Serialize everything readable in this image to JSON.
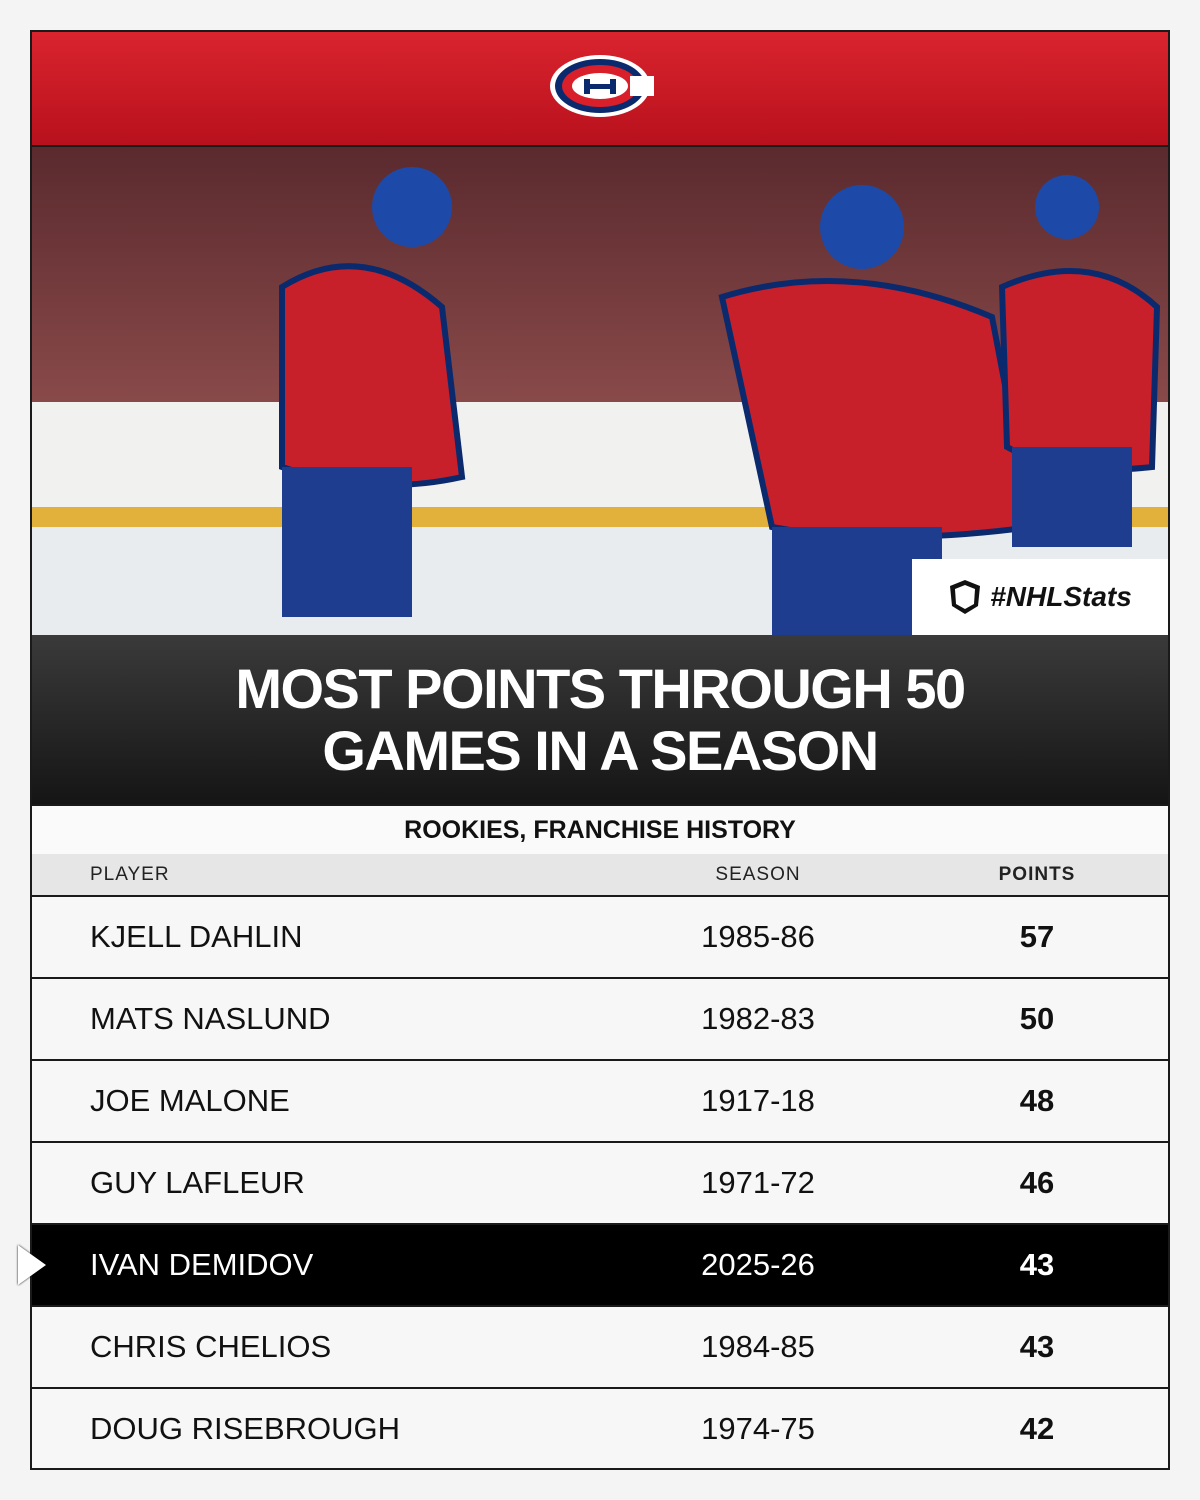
{
  "badge": "#NHLStats",
  "title": "MOST POINTS THROUGH 50 GAMES IN A SEASON",
  "subtitle": "ROOKIES, FRANCHISE HISTORY",
  "table": {
    "columns": [
      "PLAYER",
      "SEASON",
      "POINTS"
    ],
    "highlight_row": 4,
    "rows": [
      [
        "KJELL DAHLIN",
        "1985-86",
        57
      ],
      [
        "MATS NASLUND",
        "1982-83",
        50
      ],
      [
        "JOE MALONE",
        "1917-18",
        48
      ],
      [
        "GUY LAFLEUR",
        "1971-72",
        46
      ],
      [
        "IVAN DEMIDOV",
        "2025-26",
        43
      ],
      [
        "CHRIS CHELIOS",
        "1984-85",
        43
      ],
      [
        "DOUG RISEBROUGH",
        "1974-75",
        42
      ]
    ]
  }
}
